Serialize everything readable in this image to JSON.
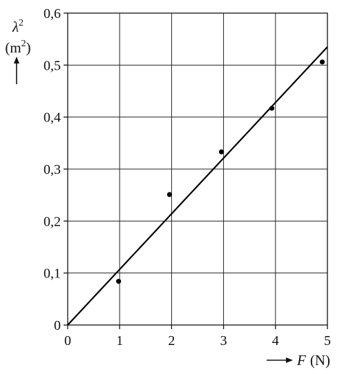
{
  "chart_data": {
    "type": "scatter",
    "xlabel": {
      "symbol": "F",
      "unit": "(N)"
    },
    "ylabel": {
      "symbol": "λ",
      "superscript": "2",
      "unit_open": "(m",
      "unit_sup": "2",
      "unit_close": ")"
    },
    "xlim": [
      0,
      5
    ],
    "ylim": [
      0,
      0.6
    ],
    "x_ticks": [
      0,
      1,
      2,
      3,
      4,
      5
    ],
    "x_tick_labels": [
      "0",
      "1",
      "2",
      "3",
      "4",
      "5"
    ],
    "y_ticks": [
      0,
      0.1,
      0.2,
      0.3,
      0.4,
      0.5,
      0.6
    ],
    "y_tick_labels": [
      "0",
      "0,1",
      "0,2",
      "0,3",
      "0,4",
      "0,5",
      "0,6"
    ],
    "grid": true,
    "series": [
      {
        "type": "scatter",
        "points": [
          {
            "x": 0.98,
            "y": 0.084
          },
          {
            "x": 1.96,
            "y": 0.251
          },
          {
            "x": 2.96,
            "y": 0.333
          },
          {
            "x": 3.93,
            "y": 0.417
          },
          {
            "x": 4.9,
            "y": 0.506
          }
        ],
        "color": "#000000"
      },
      {
        "type": "line",
        "points": [
          {
            "x": 0,
            "y": 0
          },
          {
            "x": 5,
            "y": 0.535
          }
        ],
        "color": "#000000"
      }
    ]
  }
}
